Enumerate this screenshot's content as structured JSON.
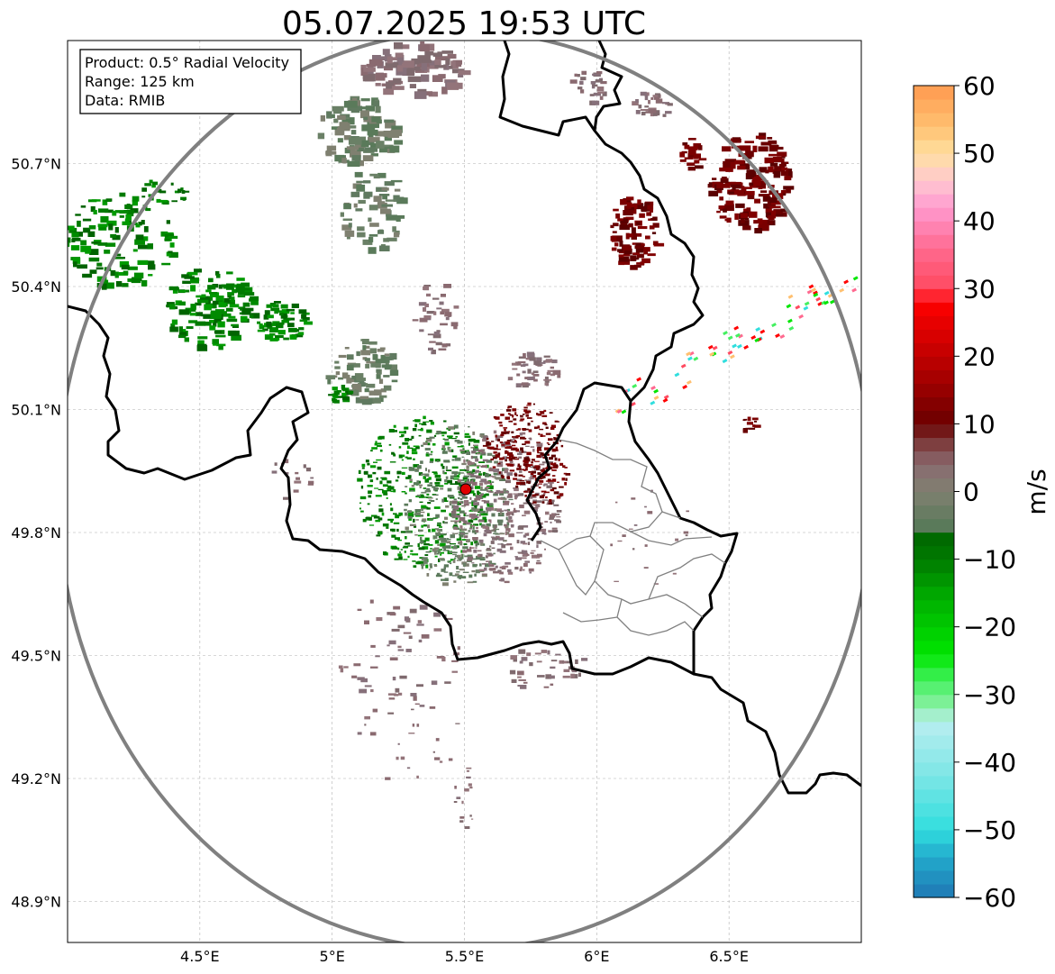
{
  "title": "05.07.2025 19:53 UTC",
  "info_box": {
    "lines": [
      "Product: 0.5° Radial Velocity",
      "Range: 125 km",
      "Data: RMIB"
    ]
  },
  "map": {
    "lon_range": [
      4.0,
      7.0
    ],
    "lat_range": [
      48.8,
      51.0
    ],
    "lon_ticks": [
      {
        "value": 4.5,
        "label": "4.5°E"
      },
      {
        "value": 5.0,
        "label": "5°E"
      },
      {
        "value": 5.5,
        "label": "5.5°E"
      },
      {
        "value": 6.0,
        "label": "6°E"
      },
      {
        "value": 6.5,
        "label": "6.5°E"
      }
    ],
    "lat_ticks": [
      {
        "value": 50.7,
        "label": "50.7°N"
      },
      {
        "value": 50.4,
        "label": "50.4°N"
      },
      {
        "value": 50.1,
        "label": "50.1°N"
      },
      {
        "value": 49.8,
        "label": "49.8°N"
      },
      {
        "value": 49.5,
        "label": "49.5°N"
      },
      {
        "value": 49.2,
        "label": "49.2°N"
      },
      {
        "value": 48.9,
        "label": "48.9°N"
      }
    ],
    "radar_site": {
      "lon": 5.505,
      "lat": 49.915,
      "name": "radar-site"
    },
    "range_ring_km": 125
  },
  "colorbar": {
    "unit": "m/s",
    "ticks": [
      {
        "value": 60,
        "label": "60"
      },
      {
        "value": 50,
        "label": "50"
      },
      {
        "value": 40,
        "label": "40"
      },
      {
        "value": 30,
        "label": "30"
      },
      {
        "value": 20,
        "label": "20"
      },
      {
        "value": 10,
        "label": "10"
      },
      {
        "value": 0,
        "label": "0"
      },
      {
        "value": -10,
        "label": "−10"
      },
      {
        "value": -20,
        "label": "−20"
      },
      {
        "value": -30,
        "label": "−30"
      },
      {
        "value": -40,
        "label": "−40"
      },
      {
        "value": -50,
        "label": "−50"
      },
      {
        "value": -60,
        "label": "−60"
      }
    ],
    "range": [
      -60,
      60
    ],
    "stops": [
      {
        "value": -60,
        "color": "#1f77b4"
      },
      {
        "value": -54,
        "color": "#22aacc"
      },
      {
        "value": -50,
        "color": "#30dede"
      },
      {
        "value": -42,
        "color": "#7de6e6"
      },
      {
        "value": -34,
        "color": "#b8eef0"
      },
      {
        "value": -32,
        "color": "#8ff0a8"
      },
      {
        "value": -28,
        "color": "#44f060"
      },
      {
        "value": -24,
        "color": "#00e600"
      },
      {
        "value": -16,
        "color": "#00b000"
      },
      {
        "value": -10,
        "color": "#007a00"
      },
      {
        "value": -6,
        "color": "#006400"
      },
      {
        "value": -5,
        "color": "#5a7a5a"
      },
      {
        "value": 0,
        "color": "#7f8070"
      },
      {
        "value": 4,
        "color": "#8a6a70"
      },
      {
        "value": 8,
        "color": "#7a3030"
      },
      {
        "value": 10,
        "color": "#6a0000"
      },
      {
        "value": 18,
        "color": "#b00000"
      },
      {
        "value": 28,
        "color": "#ff0000"
      },
      {
        "value": 30,
        "color": "#ff4a60"
      },
      {
        "value": 36,
        "color": "#ff6a90"
      },
      {
        "value": 42,
        "color": "#ff9ad0"
      },
      {
        "value": 46,
        "color": "#ffc8d0"
      },
      {
        "value": 50,
        "color": "#ffe0a0"
      },
      {
        "value": 54,
        "color": "#ffc070"
      },
      {
        "value": 60,
        "color": "#ff9a50"
      }
    ]
  },
  "colors": {
    "border": "#000000",
    "regional_border": "#808080",
    "range_ring": "#808080",
    "grid": "#b0b0b0",
    "site_marker": "#e00000"
  }
}
